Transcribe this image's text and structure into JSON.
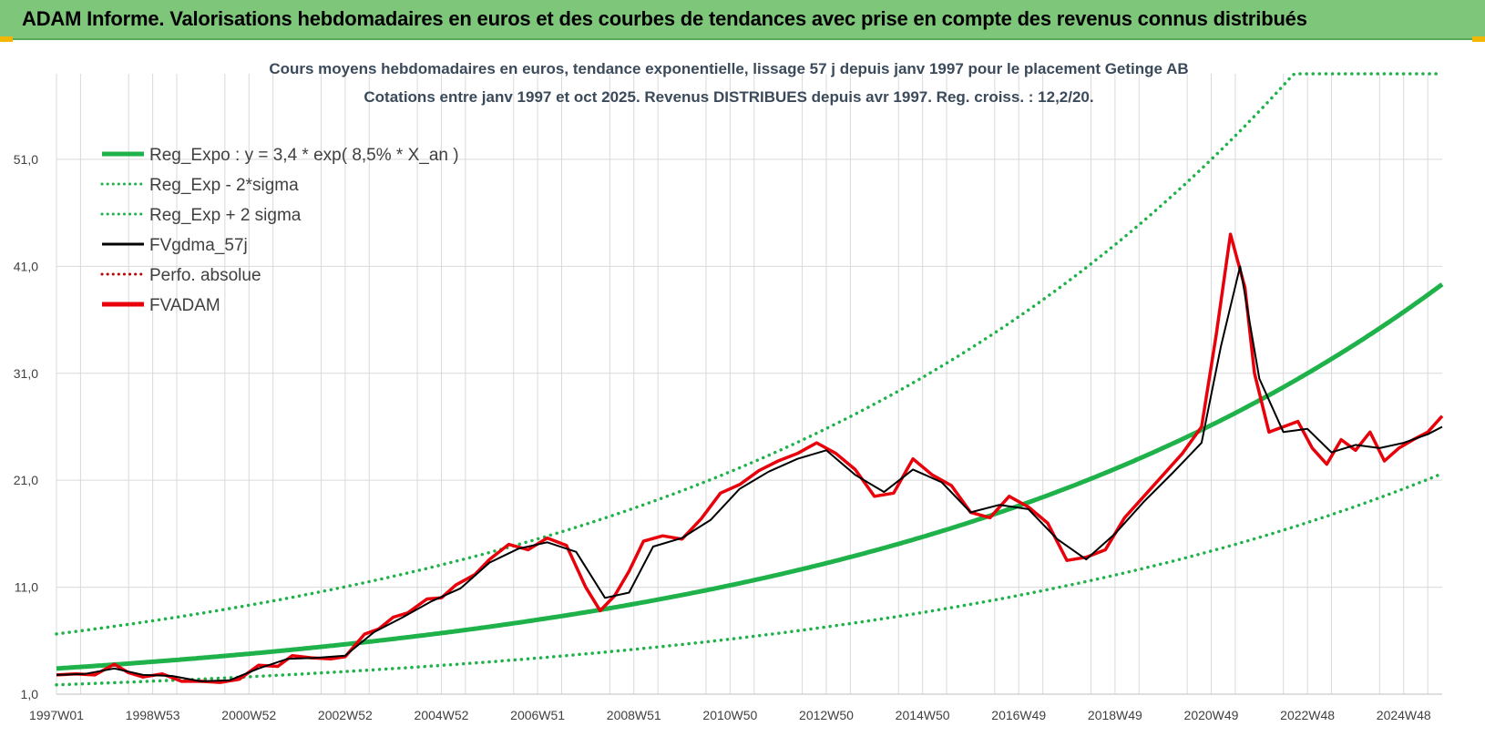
{
  "page_title": "ADAM Informe. Valorisations hebdomadaires en euros et des courbes de tendances avec prise en compte des revenus connus distribués",
  "colors": {
    "banner": "#7dc67a",
    "regression": "#1fb24a",
    "sigma": "#1fb24a",
    "moving_average": "#000000",
    "perfo": "#c00000",
    "fvadam": "#e8000b",
    "grid": "#d9d9d9",
    "corner_accent": "#f2b705"
  },
  "chart_data": {
    "type": "line",
    "title": "Cours moyens hebdomadaires en euros, tendance exponentielle, lissage 57 j depuis janv 1997 pour le placement Getinge AB",
    "subtitle": "Cotations entre janv 1997 et oct 2025. Revenus DISTRIBUES depuis avr 1997. Reg. croiss. : 12,2/20.",
    "xlabel": "",
    "ylabel": "",
    "ylim": [
      1,
      59
    ],
    "xlim": [
      1997.0,
      2025.8
    ],
    "grid": true,
    "legend_position": "top-left",
    "y_ticks": [
      "1,0",
      "11,0",
      "21,0",
      "31,0",
      "41,0",
      "51,0"
    ],
    "x_ticks": [
      {
        "label": "1997W01",
        "x": 1997.0
      },
      {
        "label": "1998W53",
        "x": 1999.0
      },
      {
        "label": "2000W52",
        "x": 2001.0
      },
      {
        "label": "2002W52",
        "x": 2003.0
      },
      {
        "label": "2004W52",
        "x": 2005.0
      },
      {
        "label": "2006W51",
        "x": 2007.0
      },
      {
        "label": "2008W51",
        "x": 2009.0
      },
      {
        "label": "2010W50",
        "x": 2011.0
      },
      {
        "label": "2012W50",
        "x": 2013.0
      },
      {
        "label": "2014W50",
        "x": 2015.0
      },
      {
        "label": "2016W49",
        "x": 2017.0
      },
      {
        "label": "2018W49",
        "x": 2019.0
      },
      {
        "label": "2020W49",
        "x": 2021.0
      },
      {
        "label": "2022W48",
        "x": 2023.0
      },
      {
        "label": "2024W48",
        "x": 2025.0
      }
    ],
    "legend": [
      {
        "label": "Reg_Expo : y = 3,4 * exp( 8,5% *  X_an )",
        "style": "solid-thick",
        "color": "#1fb24a"
      },
      {
        "label": "Reg_Exp - 2*sigma",
        "style": "dotted",
        "color": "#1fb24a"
      },
      {
        "label": "Reg_Exp + 2 sigma",
        "style": "dotted",
        "color": "#1fb24a"
      },
      {
        "label": "FVgdma_57j",
        "style": "solid",
        "color": "#000000"
      },
      {
        "label": "Perfo. absolue",
        "style": "dotted",
        "color": "#c00000"
      },
      {
        "label": "FVADAM",
        "style": "solid-thick",
        "color": "#e8000b"
      }
    ],
    "regression": {
      "a": 3.4,
      "rate": 0.085,
      "x0": 1997.0,
      "lower_factor": 0.55,
      "upper_factor": 1.95,
      "upper_cap": 59
    },
    "series": [
      {
        "name": "FVADAM",
        "x": [
          1997.0,
          1997.4,
          1997.8,
          1998.2,
          1998.5,
          1998.8,
          1999.2,
          1999.6,
          2000.0,
          2000.4,
          2000.8,
          2001.2,
          2001.6,
          2001.9,
          2002.3,
          2002.7,
          2003.0,
          2003.4,
          2003.7,
          2004.0,
          2004.3,
          2004.7,
          2005.0,
          2005.3,
          2005.7,
          2006.0,
          2006.4,
          2006.8,
          2007.2,
          2007.6,
          2008.0,
          2008.3,
          2008.6,
          2008.9,
          2009.2,
          2009.6,
          2010.0,
          2010.4,
          2010.8,
          2011.2,
          2011.6,
          2012.0,
          2012.4,
          2012.8,
          2013.2,
          2013.6,
          2014.0,
          2014.4,
          2014.8,
          2015.2,
          2015.6,
          2016.0,
          2016.4,
          2016.8,
          2017.2,
          2017.6,
          2018.0,
          2018.4,
          2018.8,
          2019.2,
          2019.6,
          2020.0,
          2020.4,
          2020.8,
          2021.1,
          2021.4,
          2021.7,
          2021.9,
          2022.2,
          2022.5,
          2022.8,
          2023.1,
          2023.4,
          2023.7,
          2024.0,
          2024.3,
          2024.6,
          2024.9,
          2025.2,
          2025.5,
          2025.8
        ],
        "y": [
          2.8,
          2.9,
          2.8,
          3.8,
          3.0,
          2.6,
          2.9,
          2.2,
          2.2,
          2.1,
          2.4,
          3.7,
          3.6,
          4.6,
          4.4,
          4.3,
          4.5,
          6.6,
          7.1,
          8.2,
          8.6,
          9.9,
          10.0,
          11.2,
          12.2,
          13.6,
          15.0,
          14.5,
          15.6,
          14.9,
          11.0,
          8.8,
          10.2,
          12.5,
          15.3,
          15.8,
          15.5,
          17.4,
          19.8,
          20.6,
          21.9,
          22.8,
          23.5,
          24.5,
          23.5,
          22.0,
          19.5,
          19.8,
          23.0,
          21.5,
          20.5,
          18.0,
          17.5,
          19.5,
          18.5,
          17.0,
          13.5,
          13.8,
          14.5,
          17.5,
          19.5,
          21.5,
          23.5,
          26.0,
          34.5,
          44.0,
          39.0,
          31.0,
          25.5,
          26.0,
          26.5,
          24.0,
          22.5,
          24.8,
          23.8,
          25.5,
          22.8,
          24.0,
          24.8,
          25.5,
          27.0
        ]
      },
      {
        "name": "FVgdma_57j",
        "x": [
          1997.0,
          1997.6,
          1998.2,
          1998.8,
          1999.4,
          2000.0,
          2000.6,
          2001.2,
          2001.8,
          2002.4,
          2003.0,
          2003.6,
          2004.2,
          2004.8,
          2005.4,
          2006.0,
          2006.6,
          2007.2,
          2007.8,
          2008.4,
          2008.9,
          2009.4,
          2010.0,
          2010.6,
          2011.2,
          2011.8,
          2012.4,
          2013.0,
          2013.6,
          2014.2,
          2014.8,
          2015.4,
          2016.0,
          2016.6,
          2017.2,
          2017.8,
          2018.4,
          2019.0,
          2019.6,
          2020.2,
          2020.8,
          2021.2,
          2021.6,
          2022.0,
          2022.5,
          2023.0,
          2023.5,
          2024.0,
          2024.5,
          2025.0,
          2025.5,
          2025.8
        ],
        "y": [
          2.8,
          2.9,
          3.4,
          2.8,
          2.7,
          2.2,
          2.3,
          3.4,
          4.3,
          4.4,
          4.6,
          6.8,
          8.2,
          9.7,
          10.9,
          13.3,
          14.6,
          15.2,
          14.3,
          10.0,
          10.5,
          14.8,
          15.6,
          17.3,
          20.2,
          21.8,
          23.0,
          23.8,
          21.5,
          19.9,
          22.0,
          20.8,
          18.0,
          18.7,
          18.3,
          15.5,
          13.6,
          16.0,
          19.0,
          21.7,
          24.5,
          33.5,
          41.0,
          30.5,
          25.5,
          25.8,
          23.6,
          24.3,
          24.0,
          24.5,
          25.3,
          26.0
        ]
      }
    ]
  }
}
